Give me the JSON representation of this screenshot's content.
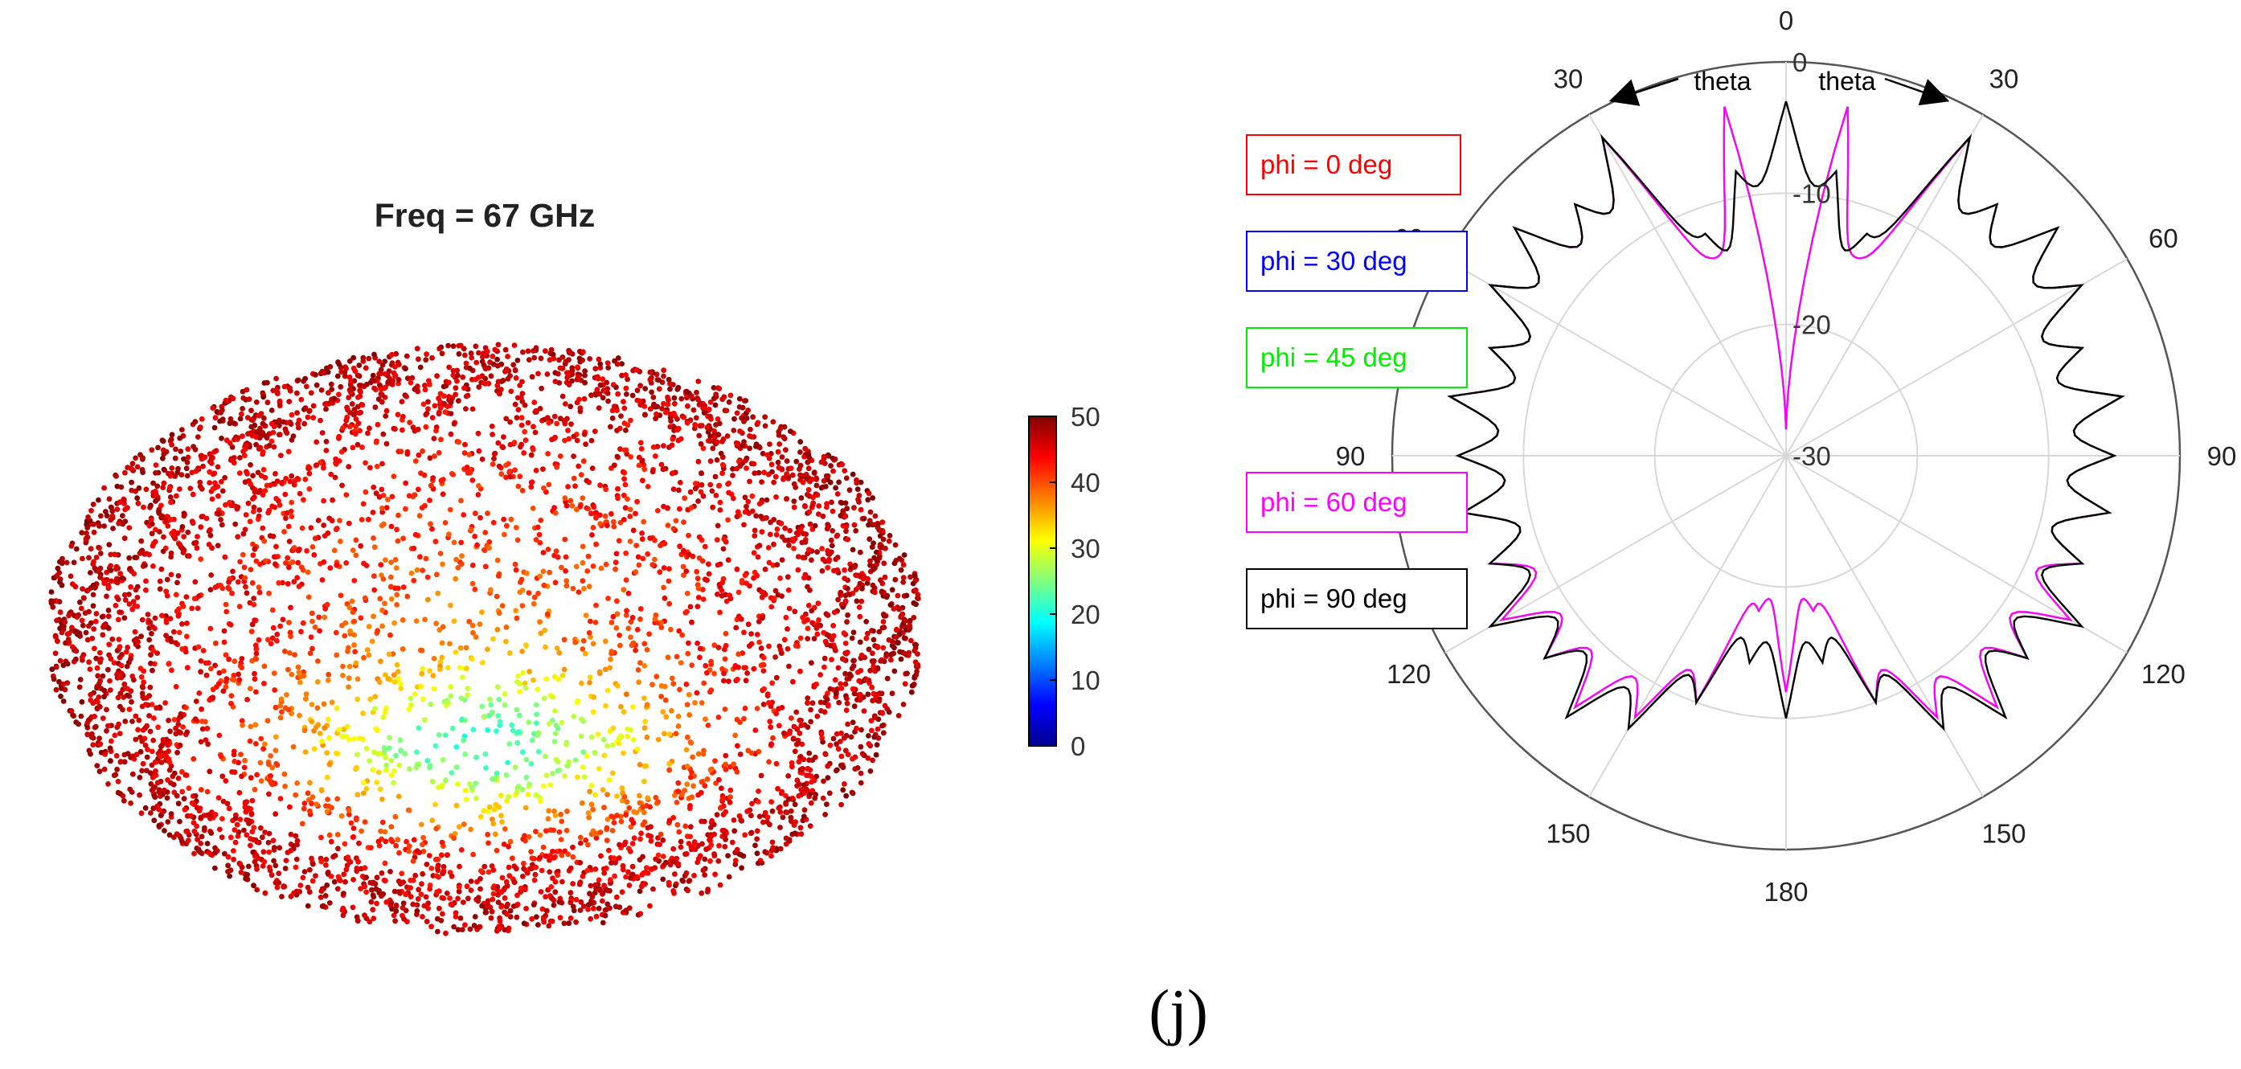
{
  "caption": "(j)",
  "chart_data": [
    {
      "type": "scatter",
      "title": "Freq = 67 GHz",
      "projection": "3d-point-cloud",
      "colorbar": {
        "min": 0,
        "max": 50,
        "ticks": [
          "50",
          "40",
          "30",
          "20",
          "10",
          "0"
        ],
        "colormap": "jet",
        "placement": "right"
      },
      "shape": {
        "description_values": "radiation pattern magnitude",
        "rim_value": 48,
        "mid_value": 38,
        "center_value": 18
      }
    },
    {
      "type": "line",
      "projection": "polar",
      "r_ticks": [
        "0",
        "-10",
        "-20",
        "-30"
      ],
      "r_range": [
        -30,
        0
      ],
      "angle_ticks_left": [
        "0",
        "30",
        "60",
        "90",
        "120",
        "150",
        "180"
      ],
      "angle_ticks_right": [
        "30",
        "60",
        "90",
        "120",
        "150"
      ],
      "angle_axis_label": "theta",
      "theta_direction": "both-sides-from-top",
      "grid": true,
      "legend_placement": "left",
      "series": [
        {
          "name": "phi = 0  deg",
          "color": "#ff0000",
          "visible_in_plot": false
        },
        {
          "name": "phi = 30 deg",
          "color": "#0000ff",
          "visible_in_plot": false
        },
        {
          "name": "phi = 45 deg",
          "color": "#00ee00",
          "theta": [
            0,
            10,
            20,
            30,
            40,
            50,
            60,
            70,
            80,
            90,
            100,
            110,
            120,
            130,
            140,
            150,
            160,
            170,
            180
          ],
          "r": [
            -28,
            -3,
            -14,
            -2,
            -5,
            -3,
            -4,
            -6,
            -4,
            -5,
            -5,
            -6,
            -5,
            -6,
            -5,
            -7,
            -10,
            -18,
            -12
          ]
        },
        {
          "name": "phi = 60 deg",
          "color": "#ff00ff",
          "theta": [
            0,
            10,
            20,
            30,
            40,
            50,
            60,
            70,
            80,
            90,
            100,
            110,
            120,
            130,
            140,
            150,
            160,
            170,
            180
          ],
          "r": [
            -28,
            -3,
            -14,
            -2,
            -5,
            -3,
            -4,
            -6,
            -4,
            -5,
            -5,
            -6,
            -5,
            -6,
            -5,
            -7,
            -10,
            -18,
            -12
          ]
        },
        {
          "name": "phi = 90 deg",
          "color": "#000000",
          "theta": [
            0,
            10,
            20,
            30,
            40,
            50,
            60,
            70,
            80,
            90,
            100,
            110,
            120,
            130,
            140,
            150,
            160,
            170,
            180
          ],
          "r": [
            -3,
            -8,
            -12,
            -2,
            -5,
            -3,
            -4,
            -6,
            -4,
            -5,
            -5,
            -6,
            -4,
            -6,
            -4,
            -6,
            -10,
            -14,
            -10
          ]
        }
      ]
    }
  ]
}
